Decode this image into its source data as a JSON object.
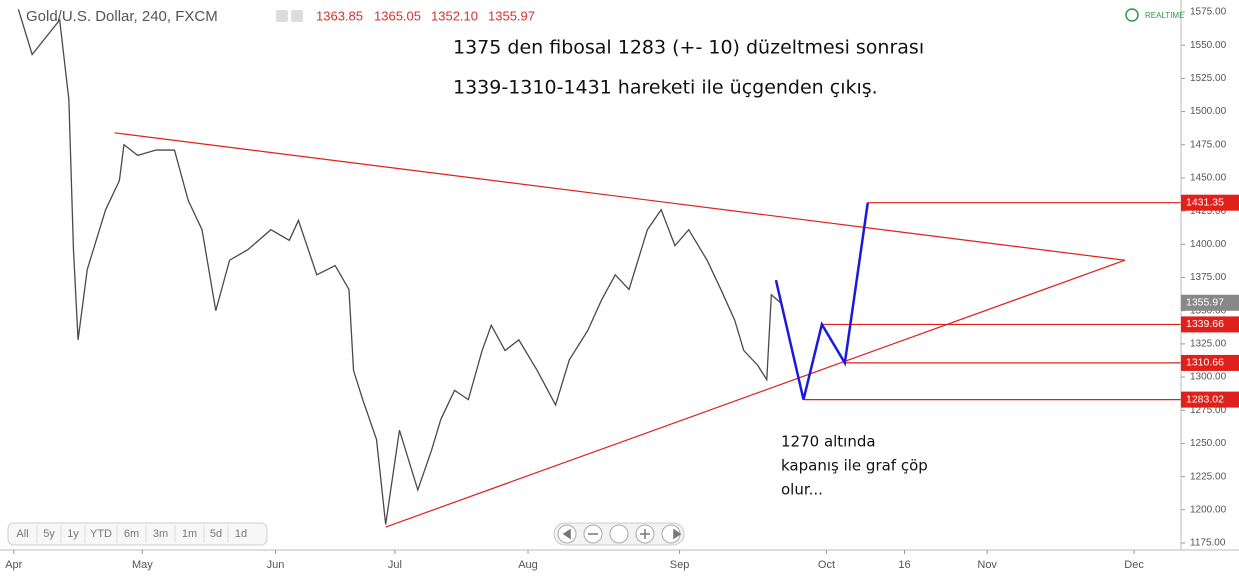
{
  "header": {
    "symbol": "Gold/U.S. Dollar, 240, FXCM",
    "ohlc": [
      "1363.85",
      "1365.05",
      "1352.10",
      "1355.97"
    ],
    "realtime": "REALTIME"
  },
  "chart_data": {
    "type": "line",
    "x": [
      1,
      4,
      10,
      12,
      13,
      14,
      16,
      20,
      23,
      24,
      27,
      31,
      35,
      38,
      41,
      44,
      47,
      51,
      56,
      60,
      62,
      66,
      70,
      73,
      74,
      76,
      79,
      81,
      84,
      88,
      91,
      93,
      96,
      99,
      102,
      104,
      107,
      110,
      114,
      118,
      121,
      125,
      128,
      131,
      134,
      138,
      141,
      144,
      147,
      151,
      154,
      157,
      159,
      162,
      164,
      165,
      167
    ],
    "values": [
      1577,
      1543,
      1569,
      1509,
      1396,
      1328,
      1381,
      1426,
      1448,
      1475,
      1467,
      1471,
      1471,
      1433,
      1411,
      1350,
      1388,
      1396,
      1411,
      1403,
      1418,
      1377,
      1384,
      1366,
      1305,
      1283,
      1253,
      1189,
      1260,
      1215,
      1245,
      1268,
      1290,
      1283,
      1320,
      1339,
      1320,
      1328,
      1305,
      1279,
      1313,
      1335,
      1358,
      1377,
      1366,
      1411,
      1426,
      1399,
      1411,
      1388,
      1366,
      1343,
      1320,
      1309,
      1298,
      1362,
      1355.97
    ],
    "color": "#4a4a4a",
    "xlim": [
      -3,
      254
    ],
    "ylim": [
      1175,
      1575
    ],
    "xticks": [
      {
        "value": 0,
        "label": "Apr"
      },
      {
        "value": 28,
        "label": "May"
      },
      {
        "value": 57,
        "label": "Jun"
      },
      {
        "value": 83,
        "label": "Jul"
      },
      {
        "value": 112,
        "label": "Aug"
      },
      {
        "value": 145,
        "label": "Sep"
      },
      {
        "value": 177,
        "label": "Oct"
      },
      {
        "value": 194,
        "label": "16"
      },
      {
        "value": 212,
        "label": "Nov"
      },
      {
        "value": 244,
        "label": "Dec"
      }
    ],
    "yticks": [
      {
        "value": 1175,
        "label": "1175.00"
      },
      {
        "value": 1200,
        "label": "1200.00"
      },
      {
        "value": 1225,
        "label": "1225.00"
      },
      {
        "value": 1250,
        "label": "1250.00"
      },
      {
        "value": 1275,
        "label": "1275.00"
      },
      {
        "value": 1300,
        "label": "1300.00"
      },
      {
        "value": 1325,
        "label": "1325.00"
      },
      {
        "value": 1350,
        "label": "1350.00"
      },
      {
        "value": 1375,
        "label": "1375.00"
      },
      {
        "value": 1400,
        "label": "1400.00"
      },
      {
        "value": 1425,
        "label": "1425.00"
      },
      {
        "value": 1450,
        "label": "1450.00"
      },
      {
        "value": 1475,
        "label": "1475.00"
      },
      {
        "value": 1500,
        "label": "1500.00"
      },
      {
        "value": 1525,
        "label": "1525.00"
      },
      {
        "value": 1550,
        "label": "1550.00"
      },
      {
        "value": 1575,
        "label": "1575.00"
      }
    ],
    "last_price": 1355.97,
    "level_color": "#e0201b",
    "levels": [
      {
        "value": 1431.35,
        "x": 186
      },
      {
        "value": 1339.66,
        "x": 176
      },
      {
        "value": 1310.66,
        "x": 181
      },
      {
        "value": 1283.02,
        "x": 172
      }
    ],
    "trendlines": [
      {
        "x": [
          22,
          242
        ],
        "values": [
          1484,
          1388
        ]
      },
      {
        "x": [
          81,
          242
        ],
        "values": [
          1187,
          1388
        ]
      }
    ],
    "projection": {
      "x": [
        166,
        172,
        176,
        181,
        186
      ],
      "values": [
        1373,
        1283.02,
        1339.66,
        1310.66,
        1431.35
      ],
      "color": "#1a1adf"
    },
    "annotations": [
      "1375 den fibosal 1283 (+- 10) düzeltmesi sonrası",
      "1339-1310-1431 hareketi ile üçgenden çıkış."
    ],
    "note": [
      "1270 altında",
      "kapanış ile graf çöp",
      "olur..."
    ]
  },
  "range_buttons": [
    "All",
    "5y",
    "1y",
    "YTD",
    "6m",
    "3m",
    "1m",
    "5d",
    "1d"
  ]
}
